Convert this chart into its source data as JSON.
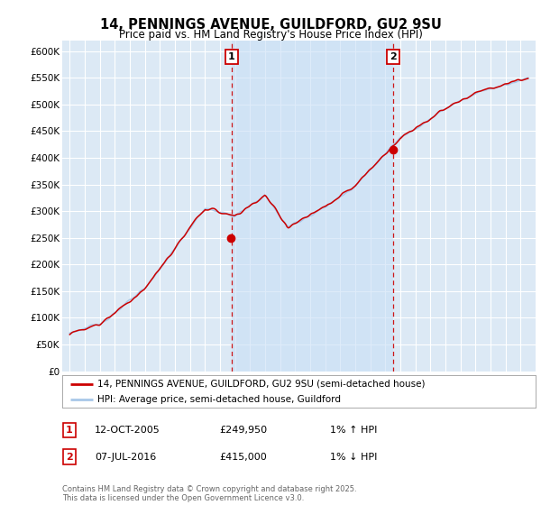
{
  "title": "14, PENNINGS AVENUE, GUILDFORD, GU2 9SU",
  "subtitle": "Price paid vs. HM Land Registry's House Price Index (HPI)",
  "legend_line1": "14, PENNINGS AVENUE, GUILDFORD, GU2 9SU (semi-detached house)",
  "legend_line2": "HPI: Average price, semi-detached house, Guildford",
  "marker1_date": "12-OCT-2005",
  "marker1_price": 249950,
  "marker1_label": "1% ↑ HPI",
  "marker2_date": "07-JUL-2016",
  "marker2_price": 415000,
  "marker2_label": "1% ↓ HPI",
  "hpi_color": "#a8c8e8",
  "price_color": "#cc0000",
  "background_color": "#ffffff",
  "plot_bg_color": "#dce9f5",
  "shade_color": "#c8dff5",
  "grid_color": "#ffffff",
  "ylim": [
    0,
    620000
  ],
  "yticks": [
    0,
    50000,
    100000,
    150000,
    200000,
    250000,
    300000,
    350000,
    400000,
    450000,
    500000,
    550000,
    600000
  ],
  "xlim_left": 1994.5,
  "xlim_right": 2026.0,
  "marker1_x": 2005.78,
  "marker2_x": 2016.51,
  "footnote": "Contains HM Land Registry data © Crown copyright and database right 2025.\nThis data is licensed under the Open Government Licence v3.0."
}
